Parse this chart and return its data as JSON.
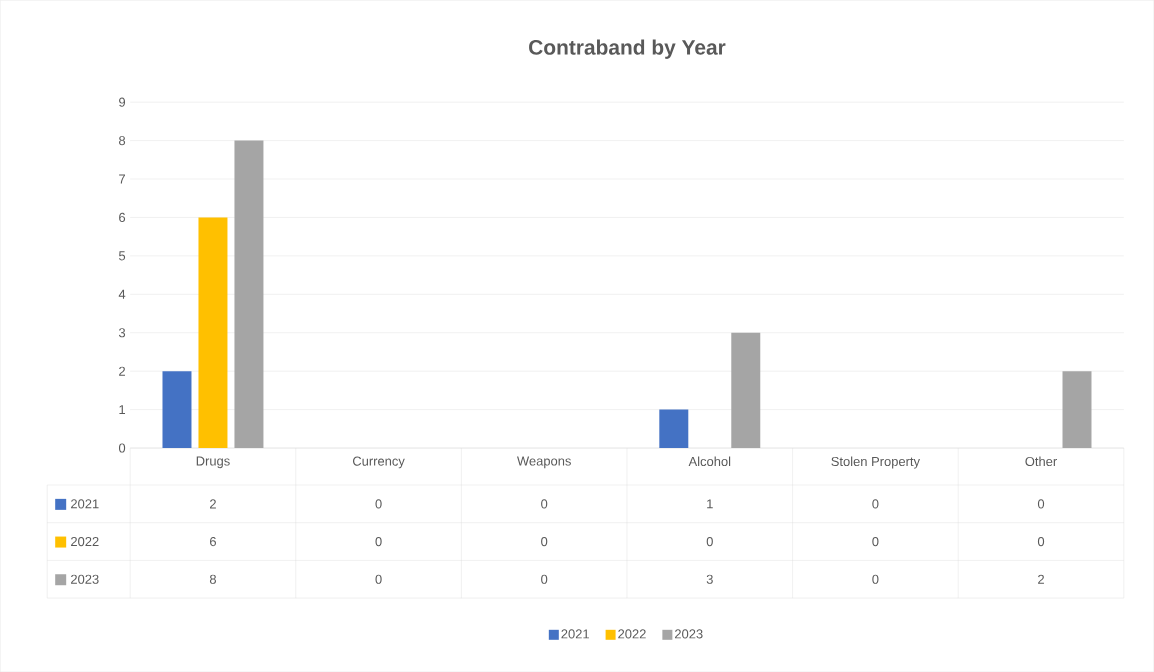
{
  "chart_data": {
    "type": "bar",
    "title": "Contraband by Year",
    "categories": [
      "Drugs",
      "Currency",
      "Weapons",
      "Alcohol",
      "Stolen Property",
      "Other"
    ],
    "series": [
      {
        "name": "2021",
        "color": "#4472c4",
        "values": [
          2,
          0,
          0,
          1,
          0,
          0
        ]
      },
      {
        "name": "2022",
        "color": "#ffc000",
        "values": [
          6,
          0,
          0,
          0,
          0,
          0
        ]
      },
      {
        "name": "2023",
        "color": "#a5a5a5",
        "values": [
          8,
          0,
          0,
          3,
          0,
          2
        ]
      }
    ],
    "ylim": [
      0,
      9
    ],
    "yticks": [
      0,
      1,
      2,
      3,
      4,
      5,
      6,
      7,
      8,
      9
    ],
    "grid": "y",
    "legend": "bottom",
    "data_labels": true
  }
}
